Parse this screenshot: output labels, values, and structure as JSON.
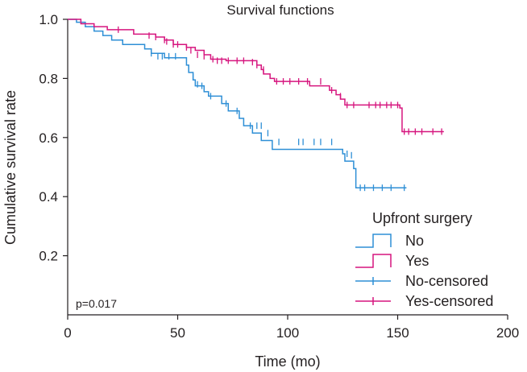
{
  "chart_data": {
    "type": "line",
    "subtype": "kaplan-meier step",
    "title": "Survival functions",
    "xlabel": "Time (mo)",
    "ylabel": "Cumulative survival rate",
    "xlim": [
      0,
      200
    ],
    "ylim": [
      0,
      1.0
    ],
    "x_ticks": [
      "0",
      "50",
      "100",
      "150",
      "200"
    ],
    "y_ticks": [
      "0.2",
      "0.4",
      "0.6",
      "0.8",
      "1.0"
    ],
    "grid": false,
    "legend_title": "Upfront surgery",
    "legend_position": "bottom-right",
    "legend": [
      "No",
      "Yes",
      "No-censored",
      "Yes-censored"
    ],
    "annotation": "p=0.017",
    "colors": {
      "no": "#2e8fd6",
      "yes": "#d6157e",
      "axis": "#231f20"
    },
    "series": [
      {
        "name": "No",
        "color": "#2e8fd6",
        "steps": [
          [
            0,
            1.0
          ],
          [
            4,
            0.99
          ],
          [
            8,
            0.975
          ],
          [
            12,
            0.96
          ],
          [
            16,
            0.945
          ],
          [
            20,
            0.93
          ],
          [
            25,
            0.915
          ],
          [
            35,
            0.9
          ],
          [
            38,
            0.885
          ],
          [
            44,
            0.87
          ],
          [
            54,
            0.845
          ],
          [
            55,
            0.82
          ],
          [
            57,
            0.795
          ],
          [
            58,
            0.775
          ],
          [
            62,
            0.755
          ],
          [
            64,
            0.74
          ],
          [
            70,
            0.715
          ],
          [
            73,
            0.69
          ],
          [
            78,
            0.665
          ],
          [
            80,
            0.64
          ],
          [
            84,
            0.615
          ],
          [
            88,
            0.59
          ],
          [
            93,
            0.56
          ],
          [
            125,
            0.545
          ],
          [
            126,
            0.52
          ],
          [
            130,
            0.495
          ],
          [
            131,
            0.43
          ],
          [
            154,
            0.43
          ]
        ],
        "censored": [
          [
            38,
            0.885
          ],
          [
            41,
            0.875
          ],
          [
            43,
            0.875
          ],
          [
            46,
            0.875
          ],
          [
            49,
            0.875
          ],
          [
            55,
            0.835
          ],
          [
            57,
            0.805
          ],
          [
            59,
            0.78
          ],
          [
            61,
            0.775
          ],
          [
            65,
            0.74
          ],
          [
            72,
            0.715
          ],
          [
            77,
            0.69
          ],
          [
            83,
            0.64
          ],
          [
            86,
            0.64
          ],
          [
            88,
            0.64
          ],
          [
            91,
            0.615
          ],
          [
            96,
            0.585
          ],
          [
            105,
            0.585
          ],
          [
            107,
            0.585
          ],
          [
            112,
            0.585
          ],
          [
            115,
            0.585
          ],
          [
            120,
            0.585
          ],
          [
            127,
            0.545
          ],
          [
            129,
            0.54
          ],
          [
            133,
            0.43
          ],
          [
            135,
            0.43
          ],
          [
            139,
            0.43
          ],
          [
            143,
            0.43
          ],
          [
            147,
            0.43
          ],
          [
            153,
            0.43
          ]
        ]
      },
      {
        "name": "Yes",
        "color": "#d6157e",
        "steps": [
          [
            0,
            1.0
          ],
          [
            6,
            0.985
          ],
          [
            12,
            0.975
          ],
          [
            18,
            0.965
          ],
          [
            30,
            0.95
          ],
          [
            40,
            0.94
          ],
          [
            44,
            0.93
          ],
          [
            48,
            0.915
          ],
          [
            54,
            0.905
          ],
          [
            58,
            0.895
          ],
          [
            62,
            0.88
          ],
          [
            65,
            0.865
          ],
          [
            72,
            0.86
          ],
          [
            86,
            0.845
          ],
          [
            88,
            0.83
          ],
          [
            89,
            0.815
          ],
          [
            92,
            0.8
          ],
          [
            94,
            0.79
          ],
          [
            110,
            0.775
          ],
          [
            119,
            0.76
          ],
          [
            122,
            0.745
          ],
          [
            124,
            0.73
          ],
          [
            126,
            0.71
          ],
          [
            151,
            0.7
          ],
          [
            152,
            0.62
          ],
          [
            171,
            0.62
          ]
        ],
        "censored": [
          [
            23,
            0.965
          ],
          [
            37,
            0.945
          ],
          [
            40,
            0.94
          ],
          [
            44,
            0.93
          ],
          [
            45,
            0.925
          ],
          [
            48,
            0.915
          ],
          [
            50,
            0.915
          ],
          [
            54,
            0.905
          ],
          [
            56,
            0.895
          ],
          [
            59,
            0.88
          ],
          [
            62,
            0.875
          ],
          [
            66,
            0.865
          ],
          [
            68,
            0.86
          ],
          [
            70,
            0.86
          ],
          [
            73,
            0.86
          ],
          [
            77,
            0.86
          ],
          [
            80,
            0.86
          ],
          [
            84,
            0.855
          ],
          [
            86,
            0.845
          ],
          [
            89,
            0.83
          ],
          [
            95,
            0.79
          ],
          [
            98,
            0.79
          ],
          [
            101,
            0.79
          ],
          [
            105,
            0.79
          ],
          [
            109,
            0.79
          ],
          [
            115,
            0.79
          ],
          [
            120,
            0.76
          ],
          [
            124,
            0.74
          ],
          [
            127,
            0.71
          ],
          [
            130,
            0.71
          ],
          [
            137,
            0.71
          ],
          [
            140,
            0.71
          ],
          [
            142,
            0.71
          ],
          [
            145,
            0.71
          ],
          [
            147,
            0.71
          ],
          [
            150,
            0.71
          ],
          [
            153,
            0.62
          ],
          [
            155,
            0.62
          ],
          [
            158,
            0.62
          ],
          [
            161,
            0.62
          ],
          [
            166,
            0.62
          ],
          [
            170,
            0.62
          ]
        ]
      }
    ]
  }
}
